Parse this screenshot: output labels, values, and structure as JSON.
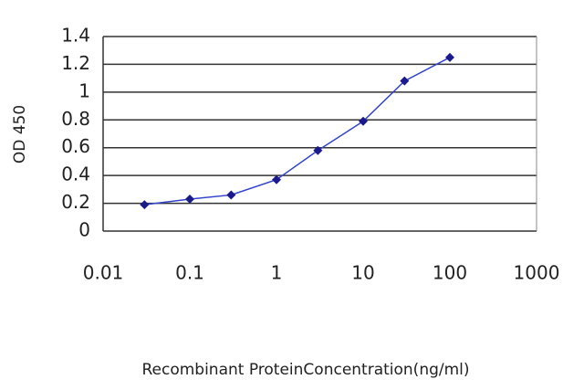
{
  "chart_data": {
    "type": "line",
    "x_label": "Recombinant ProteinConcentration(ng/ml)",
    "y_label": "OD 450",
    "log_x": true,
    "grid": true,
    "x": [
      0.03,
      0.1,
      0.3,
      1,
      3,
      10,
      30,
      100
    ],
    "series": [
      {
        "color": "#1a1a8c",
        "values": [
          0.19,
          0.23,
          0.26,
          0.37,
          0.58,
          0.79,
          1.08,
          1.25
        ]
      }
    ],
    "xlim": [
      0.01,
      1000
    ],
    "xticks": [
      0.01,
      0.1,
      1,
      10,
      100,
      1000
    ],
    "ylim": [
      0,
      1.4
    ],
    "yticks": [
      0,
      0.2,
      0.4,
      0.6,
      0.8,
      1,
      1.2,
      1.4
    ]
  }
}
